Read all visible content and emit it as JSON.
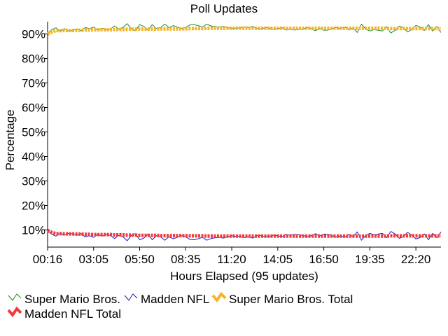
{
  "chart_data": {
    "type": "line",
    "title": "Poll Updates",
    "xlabel": "Hours Elapsed (95 updates)",
    "ylabel": "Percentage",
    "ylim": [
      3,
      95
    ],
    "yticks": [
      10,
      20,
      30,
      40,
      50,
      60,
      70,
      80,
      90
    ],
    "ytick_labels": [
      "10%",
      "20%",
      "30%",
      "40%",
      "50%",
      "60%",
      "70%",
      "80%",
      "90%"
    ],
    "xlim": [
      0,
      94
    ],
    "xticks": [
      0,
      11,
      22,
      33,
      44,
      55,
      66,
      77,
      88
    ],
    "xtick_labels": [
      "00:16",
      "03:05",
      "05:50",
      "08:35",
      "11:20",
      "14:05",
      "16:50",
      "19:35",
      "22:20"
    ],
    "grid": false,
    "legend_position": "bottom",
    "series": [
      {
        "name": "Super Mario Bros.",
        "color": "#1a8c1a",
        "style": "thin",
        "values": [
          90.0,
          91.8,
          92.5,
          91.0,
          92.2,
          91.2,
          91.4,
          92.1,
          91.3,
          92.6,
          92.2,
          92.8,
          91.6,
          92.3,
          91.8,
          92.0,
          93.3,
          92.0,
          92.6,
          94.2,
          92.1,
          91.3,
          93.8,
          93.1,
          91.6,
          93.8,
          92.2,
          92.6,
          94.0,
          92.6,
          93.4,
          92.8,
          92.2,
          92.6,
          93.7,
          93.8,
          93.4,
          92.8,
          94.0,
          93.3,
          93.0,
          92.8,
          93.1,
          92.6,
          92.2,
          92.4,
          92.5,
          92.9,
          92.6,
          93.1,
          92.2,
          92.0,
          92.6,
          92.4,
          91.9,
          92.1,
          92.6,
          91.6,
          92.0,
          91.6,
          91.8,
          92.0,
          92.6,
          92.1,
          91.3,
          92.3,
          91.5,
          91.6,
          92.2,
          92.7,
          92.2,
          92.8,
          91.6,
          92.5,
          90.6,
          94.0,
          92.0,
          91.2,
          91.8,
          91.5,
          91.2,
          92.9,
          90.4,
          91.4,
          93.2,
          92.6,
          90.8,
          91.8,
          93.5,
          92.9,
          91.4,
          93.8,
          91.2,
          93.0,
          90.6
        ]
      },
      {
        "name": "Madden NFL",
        "color": "#1a1acc",
        "style": "thin",
        "values": [
          9.8,
          8.2,
          7.5,
          8.7,
          7.9,
          8.6,
          8.4,
          7.8,
          8.5,
          7.2,
          7.6,
          7.0,
          8.2,
          7.5,
          8.0,
          7.8,
          6.5,
          7.8,
          7.2,
          5.6,
          7.7,
          8.5,
          6.0,
          6.7,
          8.2,
          6.0,
          7.6,
          7.2,
          5.8,
          7.2,
          6.4,
          7.0,
          7.6,
          7.2,
          6.1,
          6.0,
          6.4,
          7.0,
          5.8,
          6.5,
          6.8,
          7.0,
          6.7,
          7.2,
          7.6,
          7.4,
          7.3,
          6.9,
          7.2,
          6.7,
          7.6,
          7.8,
          7.2,
          7.4,
          7.9,
          7.7,
          7.2,
          8.2,
          7.8,
          8.2,
          8.0,
          7.8,
          7.2,
          7.7,
          8.5,
          7.5,
          8.3,
          8.2,
          7.6,
          7.1,
          7.6,
          7.0,
          8.2,
          7.3,
          9.2,
          5.8,
          7.8,
          8.6,
          8.0,
          8.3,
          8.6,
          6.9,
          9.4,
          8.4,
          6.6,
          7.2,
          9.0,
          8.0,
          6.3,
          6.9,
          8.4,
          6.0,
          8.6,
          6.8,
          9.2
        ]
      },
      {
        "name": "Super Mario Bros. Total",
        "color": "#f5b32a",
        "style": "thick",
        "values": [
          90.0,
          90.8,
          91.4,
          91.3,
          91.5,
          91.4,
          91.4,
          91.5,
          91.5,
          91.6,
          91.6,
          91.7,
          91.7,
          91.7,
          91.7,
          91.7,
          91.8,
          91.8,
          91.8,
          91.9,
          91.9,
          91.9,
          92.0,
          92.0,
          92.0,
          92.0,
          92.0,
          92.1,
          92.1,
          92.1,
          92.1,
          92.1,
          92.1,
          92.1,
          92.2,
          92.2,
          92.2,
          92.2,
          92.3,
          92.3,
          92.3,
          92.3,
          92.3,
          92.3,
          92.3,
          92.3,
          92.3,
          92.3,
          92.3,
          92.3,
          92.3,
          92.3,
          92.3,
          92.3,
          92.3,
          92.3,
          92.3,
          92.3,
          92.3,
          92.3,
          92.3,
          92.3,
          92.3,
          92.3,
          92.3,
          92.3,
          92.3,
          92.3,
          92.3,
          92.3,
          92.3,
          92.3,
          92.3,
          92.3,
          92.3,
          92.3,
          92.3,
          92.3,
          92.3,
          92.3,
          92.3,
          92.3,
          92.2,
          92.2,
          92.2,
          92.2,
          92.2,
          92.2,
          92.2,
          92.2,
          92.2,
          92.2,
          92.2,
          92.2,
          92.2
        ]
      },
      {
        "name": "Madden NFL Total",
        "color": "#f03a3a",
        "style": "thick",
        "values": [
          9.8,
          9.0,
          8.5,
          8.5,
          8.4,
          8.4,
          8.4,
          8.3,
          8.3,
          8.2,
          8.2,
          8.1,
          8.1,
          8.1,
          8.1,
          8.1,
          8.0,
          8.0,
          8.0,
          7.9,
          7.9,
          7.9,
          7.8,
          7.8,
          7.8,
          7.8,
          7.8,
          7.7,
          7.7,
          7.7,
          7.7,
          7.7,
          7.7,
          7.7,
          7.6,
          7.6,
          7.6,
          7.6,
          7.5,
          7.5,
          7.5,
          7.5,
          7.5,
          7.5,
          7.5,
          7.5,
          7.5,
          7.5,
          7.5,
          7.5,
          7.5,
          7.5,
          7.5,
          7.5,
          7.5,
          7.5,
          7.5,
          7.5,
          7.5,
          7.5,
          7.5,
          7.5,
          7.5,
          7.5,
          7.5,
          7.5,
          7.5,
          7.5,
          7.5,
          7.5,
          7.5,
          7.5,
          7.5,
          7.5,
          7.5,
          7.5,
          7.5,
          7.5,
          7.5,
          7.5,
          7.5,
          7.5,
          7.6,
          7.6,
          7.6,
          7.6,
          7.6,
          7.6,
          7.6,
          7.6,
          7.6,
          7.6,
          7.6,
          7.6,
          7.6
        ]
      }
    ]
  }
}
